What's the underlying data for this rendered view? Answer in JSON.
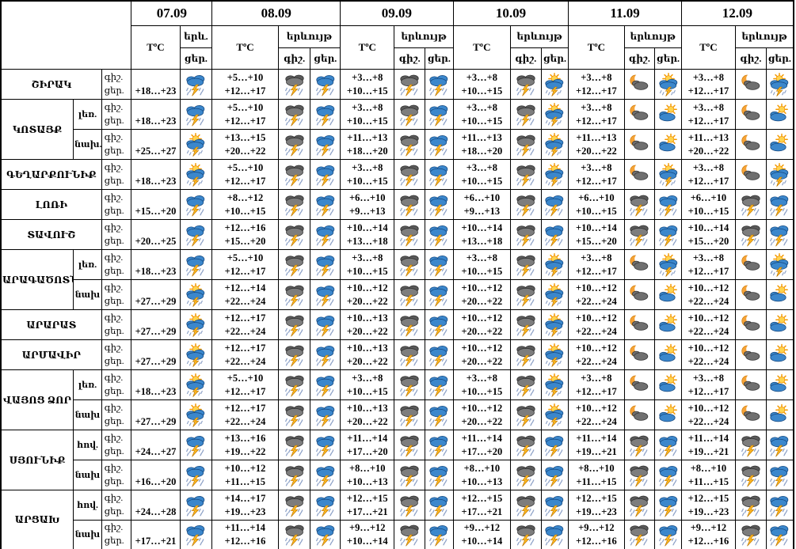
{
  "header": {
    "dates": [
      "07.09",
      "08.09",
      "09.09",
      "10.09",
      "11.09",
      "12.09"
    ],
    "temp_label": "TºC",
    "phenomenon_label": "երևույթ",
    "phenomenon_short_label": "երև.",
    "night_label": "գիշ.",
    "day_label": "ցեր."
  },
  "icon_names": {
    "storm_blue": "rain-thunderstorm-icon",
    "storm_dark": "dark-clouds-thunderstorm-icon",
    "storm_sun": "sun-rain-thunderstorm-icon",
    "sun_cloud": "partly-cloudy-day-icon",
    "moon_cloud": "partly-cloudy-night-icon"
  },
  "colors": {
    "cloud_blue": "#3b87cc",
    "cloud_dark": "#6b6b6b",
    "bolt_orange": "#ffb821",
    "sun_yellow": "#ffd34d",
    "moon_orange": "#f6a336",
    "border": "#000000"
  },
  "groups": [
    {
      "region": "ՇԻՐԱԿ",
      "rows": [
        {
          "zone": null,
          "day_temp_0709": "+18…+23",
          "icon_0709": "storm_blue",
          "days": [
            {
              "night_temp": "+5…+10",
              "day_temp": "+12…+17",
              "night_icon": "storm_dark",
              "day_icon": "storm_blue"
            },
            {
              "night_temp": "+3…+8",
              "day_temp": "+10…+15",
              "night_icon": "storm_dark",
              "day_icon": "storm_blue"
            },
            {
              "night_temp": "+3…+8",
              "day_temp": "+10…+15",
              "night_icon": "storm_dark",
              "day_icon": "storm_sun"
            },
            {
              "night_temp": "+3…+8",
              "day_temp": "+12…+17",
              "night_icon": "moon_cloud",
              "day_icon": "storm_sun"
            },
            {
              "night_temp": "+3…+8",
              "day_temp": "+12…+17",
              "night_icon": "moon_cloud",
              "day_icon": "storm_sun"
            }
          ]
        }
      ]
    },
    {
      "region": "ԿՈՏԱՅՔ",
      "rows": [
        {
          "zone": "լեռ.",
          "day_temp_0709": "+18…+23",
          "icon_0709": "storm_blue",
          "days": [
            {
              "night_temp": "+5…+10",
              "day_temp": "+12…+17",
              "night_icon": "storm_dark",
              "day_icon": "storm_blue"
            },
            {
              "night_temp": "+3…+8",
              "day_temp": "+10…+15",
              "night_icon": "storm_dark",
              "day_icon": "storm_blue"
            },
            {
              "night_temp": "+3…+8",
              "day_temp": "+10…+15",
              "night_icon": "storm_dark",
              "day_icon": "storm_sun"
            },
            {
              "night_temp": "+3…+8",
              "day_temp": "+12…+17",
              "night_icon": "moon_cloud",
              "day_icon": "sun_cloud"
            },
            {
              "night_temp": "+3…+8",
              "day_temp": "+12…+17",
              "night_icon": "moon_cloud",
              "day_icon": "sun_cloud"
            }
          ]
        },
        {
          "zone": "նախ.",
          "day_temp_0709": "+25…+27",
          "icon_0709": "storm_sun",
          "days": [
            {
              "night_temp": "+13…+15",
              "day_temp": "+20…+22",
              "night_icon": "storm_dark",
              "day_icon": "storm_blue"
            },
            {
              "night_temp": "+11…+13",
              "day_temp": "+18…+20",
              "night_icon": "storm_dark",
              "day_icon": "storm_blue"
            },
            {
              "night_temp": "+11…+13",
              "day_temp": "+18…+20",
              "night_icon": "storm_dark",
              "day_icon": "storm_sun"
            },
            {
              "night_temp": "+11…+13",
              "day_temp": "+20…+22",
              "night_icon": "moon_cloud",
              "day_icon": "sun_cloud"
            },
            {
              "night_temp": "+11…+13",
              "day_temp": "+20…+22",
              "night_icon": "moon_cloud",
              "day_icon": "sun_cloud"
            }
          ]
        }
      ]
    },
    {
      "region": "ԳԵՂԱՐՔՈՒՆԻՔ",
      "rows": [
        {
          "zone": null,
          "day_temp_0709": "+18…+23",
          "icon_0709": "storm_sun",
          "days": [
            {
              "night_temp": "+5…+10",
              "day_temp": "+12…+17",
              "night_icon": "storm_dark",
              "day_icon": "storm_blue"
            },
            {
              "night_temp": "+3…+8",
              "day_temp": "+10…+15",
              "night_icon": "storm_dark",
              "day_icon": "storm_blue"
            },
            {
              "night_temp": "+3…+8",
              "day_temp": "+10…+15",
              "night_icon": "storm_dark",
              "day_icon": "storm_sun"
            },
            {
              "night_temp": "+3…+8",
              "day_temp": "+12…+17",
              "night_icon": "moon_cloud",
              "day_icon": "storm_sun"
            },
            {
              "night_temp": "+3…+8",
              "day_temp": "+12…+17",
              "night_icon": "moon_cloud",
              "day_icon": "storm_sun"
            }
          ]
        }
      ]
    },
    {
      "region": "ԼՈՌԻ",
      "rows": [
        {
          "zone": null,
          "day_temp_0709": "+15…+20",
          "icon_0709": "storm_blue",
          "days": [
            {
              "night_temp": "+8…+12",
              "day_temp": "+10…+15",
              "night_icon": "storm_dark",
              "day_icon": "storm_blue"
            },
            {
              "night_temp": "+6…+10",
              "day_temp": "+9…+13",
              "night_icon": "storm_dark",
              "day_icon": "storm_blue"
            },
            {
              "night_temp": "+6…+10",
              "day_temp": "+9…+13",
              "night_icon": "storm_dark",
              "day_icon": "storm_blue"
            },
            {
              "night_temp": "+6…+10",
              "day_temp": "+10…+15",
              "night_icon": "storm_dark",
              "day_icon": "storm_blue"
            },
            {
              "night_temp": "+6…+10",
              "day_temp": "+10…+15",
              "night_icon": "storm_dark",
              "day_icon": "storm_blue"
            }
          ]
        }
      ]
    },
    {
      "region": "ՏԱՎՈՒՇ",
      "rows": [
        {
          "zone": null,
          "day_temp_0709": "+20…+25",
          "icon_0709": "storm_blue",
          "days": [
            {
              "night_temp": "+12…+16",
              "day_temp": "+15…+20",
              "night_icon": "storm_dark",
              "day_icon": "storm_blue"
            },
            {
              "night_temp": "+10…+14",
              "day_temp": "+13…+18",
              "night_icon": "storm_dark",
              "day_icon": "storm_blue"
            },
            {
              "night_temp": "+10…+14",
              "day_temp": "+13…+18",
              "night_icon": "storm_dark",
              "day_icon": "storm_blue"
            },
            {
              "night_temp": "+10…+14",
              "day_temp": "+15…+20",
              "night_icon": "storm_dark",
              "day_icon": "storm_blue"
            },
            {
              "night_temp": "+10…+14",
              "day_temp": "+15…+20",
              "night_icon": "storm_dark",
              "day_icon": "storm_blue"
            }
          ]
        }
      ]
    },
    {
      "region": "ԱՐԱԳԱԾՈՏՆ",
      "rows": [
        {
          "zone": "լեռ.",
          "day_temp_0709": "+18…+23",
          "icon_0709": "storm_blue",
          "days": [
            {
              "night_temp": "+5…+10",
              "day_temp": "+12…+17",
              "night_icon": "storm_dark",
              "day_icon": "storm_blue"
            },
            {
              "night_temp": "+3…+8",
              "day_temp": "+10…+15",
              "night_icon": "storm_dark",
              "day_icon": "storm_blue"
            },
            {
              "night_temp": "+3…+8",
              "day_temp": "+10…+15",
              "night_icon": "storm_dark",
              "day_icon": "storm_sun"
            },
            {
              "night_temp": "+3…+8",
              "day_temp": "+12…+17",
              "night_icon": "moon_cloud",
              "day_icon": "storm_sun"
            },
            {
              "night_temp": "+3…+8",
              "day_temp": "+12…+17",
              "night_icon": "moon_cloud",
              "day_icon": "storm_sun"
            }
          ]
        },
        {
          "zone": "նախ",
          "day_temp_0709": "+27…+29",
          "icon_0709": "storm_sun",
          "days": [
            {
              "night_temp": "+12…+14",
              "day_temp": "+22…+24",
              "night_icon": "storm_dark",
              "day_icon": "storm_blue"
            },
            {
              "night_temp": "+10…+12",
              "day_temp": "+20…+22",
              "night_icon": "storm_dark",
              "day_icon": "storm_blue"
            },
            {
              "night_temp": "+10…+12",
              "day_temp": "+20…+22",
              "night_icon": "storm_dark",
              "day_icon": "storm_sun"
            },
            {
              "night_temp": "+10…+12",
              "day_temp": "+22…+24",
              "night_icon": "moon_cloud",
              "day_icon": "sun_cloud"
            },
            {
              "night_temp": "+10…+12",
              "day_temp": "+22…+24",
              "night_icon": "moon_cloud",
              "day_icon": "sun_cloud"
            }
          ]
        }
      ]
    },
    {
      "region": "ԱՐԱՐԱՏ",
      "rows": [
        {
          "zone": null,
          "day_temp_0709": "+27…+29",
          "icon_0709": "storm_sun",
          "days": [
            {
              "night_temp": "+12…+17",
              "day_temp": "+22…+24",
              "night_icon": "storm_dark",
              "day_icon": "storm_blue"
            },
            {
              "night_temp": "+10…+13",
              "day_temp": "+20…+22",
              "night_icon": "storm_dark",
              "day_icon": "storm_blue"
            },
            {
              "night_temp": "+10…+12",
              "day_temp": "+20…+22",
              "night_icon": "storm_dark",
              "day_icon": "storm_sun"
            },
            {
              "night_temp": "+10…+12",
              "day_temp": "+22…+24",
              "night_icon": "moon_cloud",
              "day_icon": "sun_cloud"
            },
            {
              "night_temp": "+10…+12",
              "day_temp": "+22…+24",
              "night_icon": "moon_cloud",
              "day_icon": "sun_cloud"
            }
          ]
        }
      ]
    },
    {
      "region": "ԱՐՄԱՎԻՐ",
      "rows": [
        {
          "zone": null,
          "day_temp_0709": "+27…+29",
          "icon_0709": "storm_sun",
          "days": [
            {
              "night_temp": "+12…+17",
              "day_temp": "+22…+24",
              "night_icon": "storm_dark",
              "day_icon": "storm_blue"
            },
            {
              "night_temp": "+10…+13",
              "day_temp": "+20…+22",
              "night_icon": "storm_dark",
              "day_icon": "storm_blue"
            },
            {
              "night_temp": "+10…+12",
              "day_temp": "+20…+22",
              "night_icon": "storm_dark",
              "day_icon": "storm_sun"
            },
            {
              "night_temp": "+10…+12",
              "day_temp": "+22…+24",
              "night_icon": "moon_cloud",
              "day_icon": "sun_cloud"
            },
            {
              "night_temp": "+10…+12",
              "day_temp": "+22…+24",
              "night_icon": "moon_cloud",
              "day_icon": "sun_cloud"
            }
          ]
        }
      ]
    },
    {
      "region": "ՎԱՅՈՑ ՁՈՐ",
      "rows": [
        {
          "zone": "լեռ.",
          "day_temp_0709": "+18…+23",
          "icon_0709": "storm_sun",
          "days": [
            {
              "night_temp": "+5…+10",
              "day_temp": "+12…+17",
              "night_icon": "storm_dark",
              "day_icon": "storm_blue"
            },
            {
              "night_temp": "+3…+8",
              "day_temp": "+10…+15",
              "night_icon": "storm_dark",
              "day_icon": "storm_blue"
            },
            {
              "night_temp": "+3…+8",
              "day_temp": "+10…+15",
              "night_icon": "storm_dark",
              "day_icon": "storm_sun"
            },
            {
              "night_temp": "+3…+8",
              "day_temp": "+12…+17",
              "night_icon": "moon_cloud",
              "day_icon": "sun_cloud"
            },
            {
              "night_temp": "+3…+8",
              "day_temp": "+12…+17",
              "night_icon": "moon_cloud",
              "day_icon": "sun_cloud"
            }
          ]
        },
        {
          "zone": "նախ",
          "day_temp_0709": "+27…+29",
          "icon_0709": "storm_sun",
          "days": [
            {
              "night_temp": "+12…+17",
              "day_temp": "+22…+24",
              "night_icon": "storm_dark",
              "day_icon": "storm_blue"
            },
            {
              "night_temp": "+10…+13",
              "day_temp": "+20…+22",
              "night_icon": "storm_dark",
              "day_icon": "storm_blue"
            },
            {
              "night_temp": "+10…+12",
              "day_temp": "+20…+22",
              "night_icon": "storm_dark",
              "day_icon": "storm_sun"
            },
            {
              "night_temp": "+10…+12",
              "day_temp": "+22…+24",
              "night_icon": "moon_cloud",
              "day_icon": "sun_cloud"
            },
            {
              "night_temp": "+10…+12",
              "day_temp": "+22…+24",
              "night_icon": "moon_cloud",
              "day_icon": "sun_cloud"
            }
          ]
        }
      ]
    },
    {
      "region": "ՍՅՈՒՆԻՔ",
      "rows": [
        {
          "zone": "հով.",
          "day_temp_0709": "+24…+27",
          "icon_0709": "storm_blue",
          "days": [
            {
              "night_temp": "+13…+16",
              "day_temp": "+19…+22",
              "night_icon": "storm_dark",
              "day_icon": "storm_blue"
            },
            {
              "night_temp": "+11…+14",
              "day_temp": "+17…+20",
              "night_icon": "storm_dark",
              "day_icon": "storm_blue"
            },
            {
              "night_temp": "+11…+14",
              "day_temp": "+17…+20",
              "night_icon": "storm_dark",
              "day_icon": "storm_blue"
            },
            {
              "night_temp": "+11…+14",
              "day_temp": "+19…+21",
              "night_icon": "storm_dark",
              "day_icon": "storm_blue"
            },
            {
              "night_temp": "+11…+14",
              "day_temp": "+19…+21",
              "night_icon": "storm_dark",
              "day_icon": "storm_blue"
            }
          ]
        },
        {
          "zone": "նախ",
          "day_temp_0709": "+16…+20",
          "icon_0709": "storm_blue",
          "days": [
            {
              "night_temp": "+10…+12",
              "day_temp": "+11…+15",
              "night_icon": "storm_dark",
              "day_icon": "storm_blue"
            },
            {
              "night_temp": "+8…+10",
              "day_temp": "+10…+13",
              "night_icon": "storm_dark",
              "day_icon": "storm_blue"
            },
            {
              "night_temp": "+8…+10",
              "day_temp": "+10…+13",
              "night_icon": "storm_dark",
              "day_icon": "storm_blue"
            },
            {
              "night_temp": "+8…+10",
              "day_temp": "+11…+15",
              "night_icon": "storm_dark",
              "day_icon": "storm_blue"
            },
            {
              "night_temp": "+8…+10",
              "day_temp": "+11…+15",
              "night_icon": "storm_dark",
              "day_icon": "storm_blue"
            }
          ]
        }
      ]
    },
    {
      "region": "ԱՐՑԱԽ",
      "rows": [
        {
          "zone": "հով.",
          "day_temp_0709": "+24…+28",
          "icon_0709": "storm_blue",
          "days": [
            {
              "night_temp": "+14…+17",
              "day_temp": "+19…+23",
              "night_icon": "storm_dark",
              "day_icon": "storm_blue"
            },
            {
              "night_temp": "+12…+15",
              "day_temp": "+17…+21",
              "night_icon": "storm_dark",
              "day_icon": "storm_blue"
            },
            {
              "night_temp": "+12…+15",
              "day_temp": "+17…+21",
              "night_icon": "storm_dark",
              "day_icon": "storm_blue"
            },
            {
              "night_temp": "+12…+15",
              "day_temp": "+19…+23",
              "night_icon": "storm_dark",
              "day_icon": "storm_blue"
            },
            {
              "night_temp": "+12…+15",
              "day_temp": "+19…+23",
              "night_icon": "storm_dark",
              "day_icon": "storm_blue"
            }
          ]
        },
        {
          "zone": "նախ",
          "day_temp_0709": "+17…+21",
          "icon_0709": "storm_blue",
          "days": [
            {
              "night_temp": "+11…+14",
              "day_temp": "+12…+16",
              "night_icon": "storm_dark",
              "day_icon": "storm_blue"
            },
            {
              "night_temp": "+9…+12",
              "day_temp": "+10…+14",
              "night_icon": "storm_dark",
              "day_icon": "storm_blue"
            },
            {
              "night_temp": "+9…+12",
              "day_temp": "+10…+14",
              "night_icon": "storm_dark",
              "day_icon": "storm_blue"
            },
            {
              "night_temp": "+9…+12",
              "day_temp": "+12…+16",
              "night_icon": "storm_dark",
              "day_icon": "storm_blue"
            },
            {
              "night_temp": "+9…+12",
              "day_temp": "+12…+16",
              "night_icon": "storm_dark",
              "day_icon": "storm_blue"
            }
          ]
        }
      ]
    }
  ]
}
